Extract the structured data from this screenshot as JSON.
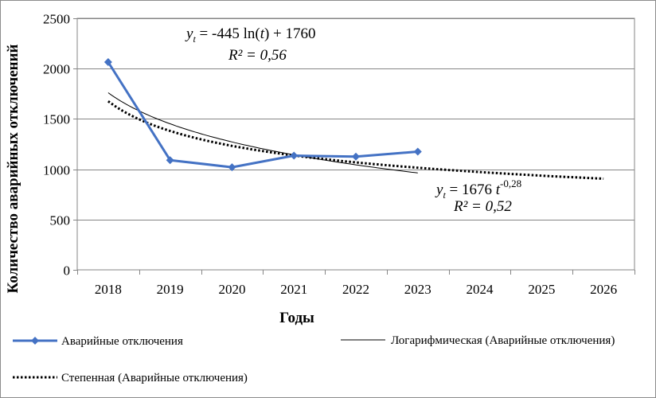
{
  "chart_data": {
    "type": "line",
    "xlabel": "Годы",
    "ylabel": "Количество аварийных отключений",
    "ylim": [
      0,
      2500
    ],
    "yticks": [
      0,
      500,
      1000,
      1500,
      2000,
      2500
    ],
    "x": [
      2018,
      2019,
      2020,
      2021,
      2022,
      2023,
      2024,
      2025,
      2026
    ],
    "grid": "horizontal",
    "legend_position": "bottom",
    "series": [
      {
        "name": "Аварийные  отключения",
        "color": "#4472C4",
        "marker": "diamond",
        "x": [
          2018,
          2019,
          2020,
          2021,
          2022,
          2023
        ],
        "values": [
          2065,
          1090,
          1020,
          1135,
          1125,
          1175
        ]
      },
      {
        "name": "Логарифмическая (Аварийные  отключения)",
        "color": "#000000",
        "style": "solid-thin",
        "trend": "logarithmic",
        "fit": {
          "a": -445,
          "b": 1760
        },
        "x_range": [
          2018,
          2023
        ]
      },
      {
        "name": "Степенная (Аварийные  отключения)",
        "color": "#000000",
        "style": "dotted",
        "trend": "power",
        "fit": {
          "a": 1676,
          "b": -0.28
        },
        "x_range": [
          2018,
          2026
        ]
      }
    ],
    "annotations": {
      "log_eq": {
        "y": "y",
        "t": "t",
        "rhs_pre": " = -445 ln(",
        "rhs_post": ") + 1760",
        "r2": "R² = 0,56"
      },
      "pow_eq": {
        "y": "y",
        "t": "t",
        "lhs_rest": " = 1676 ",
        "exp": "-0,28",
        "r2": "R² = 0,52"
      }
    }
  }
}
